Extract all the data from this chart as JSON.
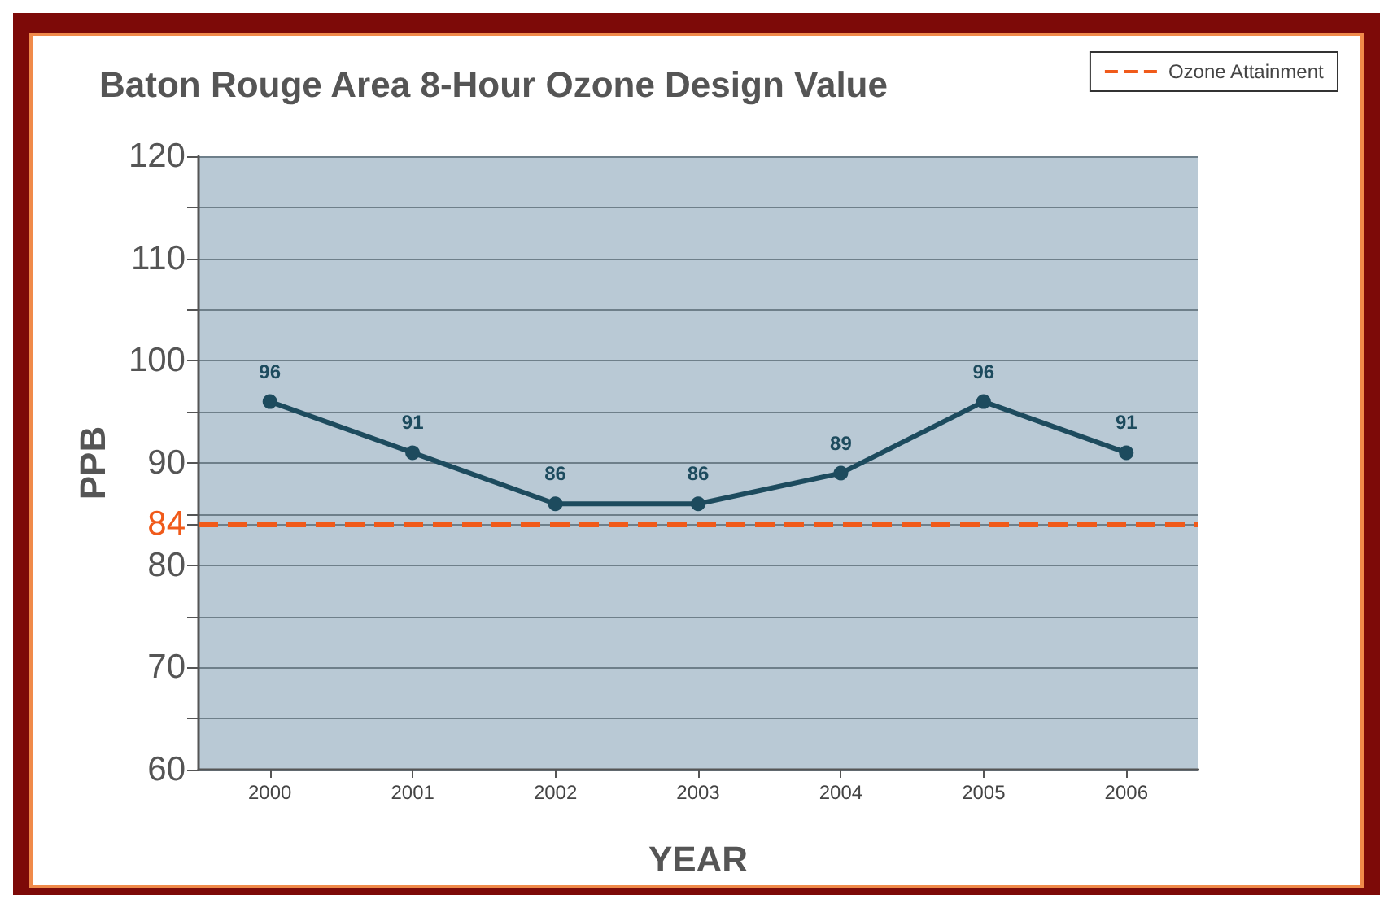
{
  "chart_data": {
    "type": "line",
    "title": "Baton Rouge Area 8-Hour Ozone Design Value",
    "xlabel": "YEAR",
    "ylabel": "PPB",
    "categories": [
      "2000",
      "2001",
      "2002",
      "2003",
      "2004",
      "2005",
      "2006"
    ],
    "series": [
      {
        "color": "#1d4b5e",
        "values": [
          96,
          91,
          86,
          86,
          89,
          96,
          91
        ]
      }
    ],
    "data_labels": true,
    "marker": "circle",
    "line_style": "solid",
    "grid": "y",
    "legend": "top right",
    "ylim": [
      60,
      120
    ],
    "yticks": [
      60,
      {
        "value": 65,
        "label": null
      },
      70,
      {
        "value": 75,
        "label": null
      },
      80,
      {
        "value": 84,
        "label": "84"
      },
      {
        "value": 85,
        "label": null
      },
      90,
      {
        "value": 95,
        "label": null
      },
      100,
      {
        "value": 105,
        "label": null
      },
      110,
      {
        "value": 115,
        "label": null
      },
      120
    ],
    "ref_lines": [
      {
        "axis": "y",
        "value": 84,
        "label": "Ozone Attainment",
        "color": "#f05a1a",
        "line_style": "dashed"
      }
    ]
  }
}
